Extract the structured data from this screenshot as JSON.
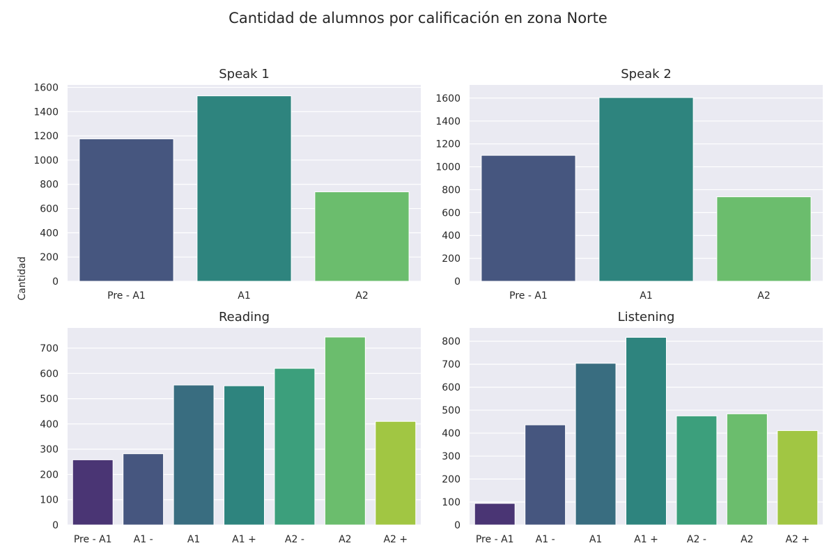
{
  "figure": {
    "title": "Cantidad de alumnos por calificación en zona Norte",
    "ylabel": "Cantidad"
  },
  "chart_data": [
    {
      "type": "bar",
      "title": "Speak 1",
      "categories": [
        "Pre - A1",
        "A1",
        "A2"
      ],
      "values": [
        1175,
        1530,
        738
      ],
      "colors": [
        "#46567f",
        "#2e847e",
        "#6bbd6d"
      ],
      "ylim": [
        0,
        1600
      ],
      "yticks": [
        0,
        200,
        400,
        600,
        800,
        1000,
        1200,
        1400,
        1600
      ],
      "grid": true
    },
    {
      "type": "bar",
      "title": "Speak 2",
      "categories": [
        "Pre - A1",
        "A1",
        "A2"
      ],
      "values": [
        1100,
        1605,
        738
      ],
      "colors": [
        "#46567f",
        "#2e847e",
        "#6bbd6d"
      ],
      "ylim": [
        0,
        1600
      ],
      "yticks": [
        0,
        200,
        400,
        600,
        800,
        1000,
        1200,
        1400,
        1600
      ],
      "grid": true
    },
    {
      "type": "bar",
      "title": "Reading",
      "categories": [
        "Pre - A1",
        "A1 -",
        "A1",
        "A1 +",
        "A2 -",
        "A2",
        "A2 +"
      ],
      "values": [
        258,
        282,
        554,
        551,
        620,
        744,
        410
      ],
      "colors": [
        "#4a3574",
        "#46567f",
        "#396d80",
        "#2e847e",
        "#3c9f7c",
        "#6bbd6d",
        "#a1c643"
      ],
      "ylim": [
        0,
        700
      ],
      "yticks": [
        0,
        100,
        200,
        300,
        400,
        500,
        600,
        700
      ],
      "grid": true
    },
    {
      "type": "bar",
      "title": "Listening",
      "categories": [
        "Pre - A1",
        "A1 -",
        "A1",
        "A1 +",
        "A2 -",
        "A2",
        "A2 +"
      ],
      "values": [
        94,
        436,
        704,
        817,
        475,
        484,
        411
      ],
      "colors": [
        "#4a3574",
        "#46567f",
        "#396d80",
        "#2e847e",
        "#3c9f7c",
        "#6bbd6d",
        "#a1c643"
      ],
      "ylim": [
        0,
        800
      ],
      "yticks": [
        0,
        100,
        200,
        300,
        400,
        500,
        600,
        700,
        800
      ],
      "grid": true
    }
  ]
}
